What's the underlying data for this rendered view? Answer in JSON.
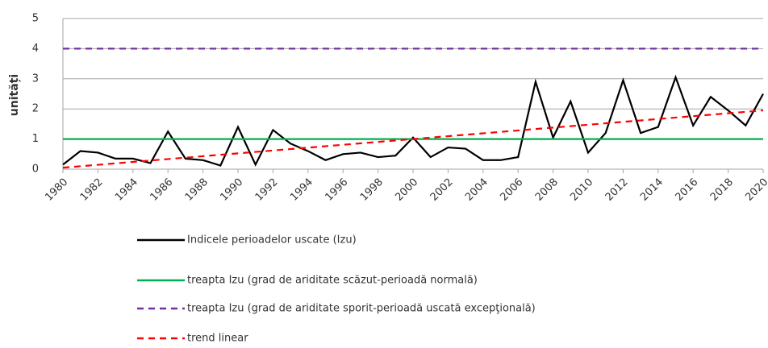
{
  "chart_data": {
    "type": "line",
    "y_label": "unități",
    "x": [
      1980,
      1981,
      1982,
      1983,
      1984,
      1985,
      1986,
      1987,
      1988,
      1989,
      1990,
      1991,
      1992,
      1993,
      1994,
      1995,
      1996,
      1997,
      1998,
      1999,
      2000,
      2001,
      2002,
      2003,
      2004,
      2005,
      2006,
      2007,
      2008,
      2009,
      2010,
      2011,
      2012,
      2013,
      2014,
      2015,
      2016,
      2017,
      2018,
      2019,
      2020
    ],
    "xlim": [
      1980,
      2020
    ],
    "xticks": [
      1980,
      1982,
      1984,
      1986,
      1988,
      1990,
      1992,
      1994,
      1996,
      1998,
      2000,
      2002,
      2004,
      2006,
      2008,
      2010,
      2012,
      2014,
      2016,
      2018,
      2020
    ],
    "ylim": [
      0,
      5
    ],
    "yticks": [
      0,
      1,
      2,
      3,
      4,
      5
    ],
    "grid": true,
    "series": [
      {
        "name": "Indicele perioadelor uscate (Izu)",
        "color": "#000000",
        "dash": false,
        "values": [
          0.15,
          0.6,
          0.55,
          0.35,
          0.35,
          0.2,
          1.25,
          0.35,
          0.3,
          0.12,
          1.4,
          0.15,
          1.3,
          0.85,
          0.6,
          0.3,
          0.5,
          0.55,
          0.4,
          0.45,
          1.05,
          0.4,
          0.72,
          0.68,
          0.3,
          0.3,
          0.4,
          2.9,
          1.05,
          2.25,
          0.55,
          1.2,
          2.95,
          1.2,
          1.4,
          3.05,
          1.45,
          2.4,
          1.95,
          1.45,
          2.5
        ]
      },
      {
        "name": "treapta Izu (grad de ariditate scăzut-perioadă normală)",
        "color": "#00b050",
        "dash": false,
        "x": [
          1980,
          2020
        ],
        "values": [
          1,
          1
        ]
      },
      {
        "name": "treapta Izu (grad de ariditate sporit-perioadă uscată excepţională)",
        "color": "#7030a0",
        "dash": true,
        "x": [
          1980,
          2020
        ],
        "values": [
          4,
          4
        ]
      },
      {
        "name": "trend linear",
        "color": "#ff0000",
        "dash": true,
        "x": [
          1980,
          2020
        ],
        "values": [
          0.05,
          1.95
        ]
      }
    ]
  }
}
